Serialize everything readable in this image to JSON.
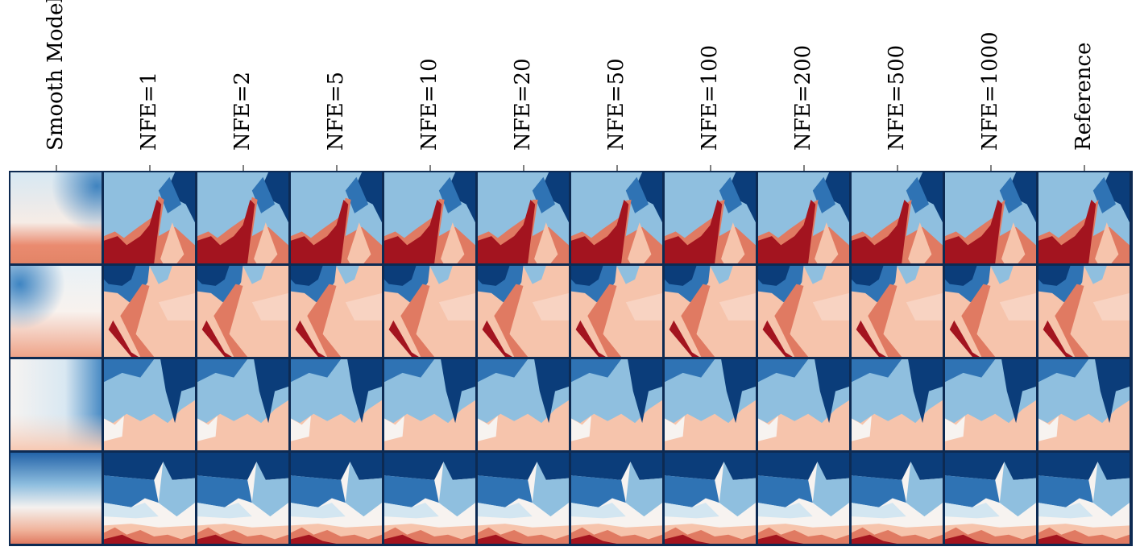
{
  "figure": {
    "columns": [
      {
        "label": "Smooth Model"
      },
      {
        "label": "NFE=1"
      },
      {
        "label": "NFE=2"
      },
      {
        "label": "NFE=5"
      },
      {
        "label": "NFE=10"
      },
      {
        "label": "NFE=20"
      },
      {
        "label": "NFE=50"
      },
      {
        "label": "NFE=100"
      },
      {
        "label": "NFE=200"
      },
      {
        "label": "NFE=500"
      },
      {
        "label": "NFE=1000"
      },
      {
        "label": "Reference"
      }
    ],
    "row_count": 4,
    "colormap": "RdBu_r",
    "colors": {
      "dark_blue": "#0b3d7a",
      "mid_blue": "#2f73b4",
      "light_blue": "#8fbfdf",
      "pale_blue": "#d3e6f1",
      "white": "#f7f3f0",
      "pale_red": "#f6c4ac",
      "mid_red": "#e07a62",
      "dark_red": "#a3141f",
      "frame": "#0d2a52"
    }
  }
}
